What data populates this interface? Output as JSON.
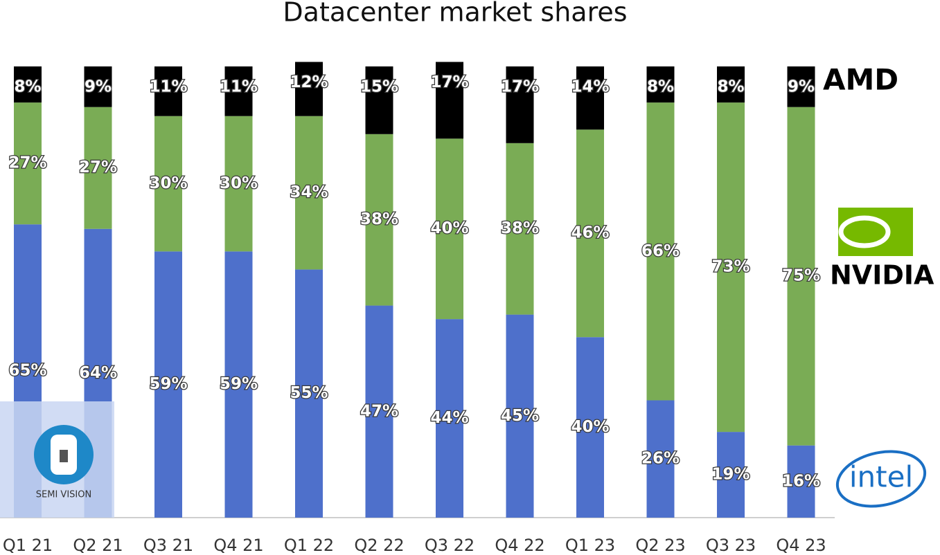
{
  "chart_data": {
    "type": "stacked-bar",
    "title": "Datacenter market shares",
    "watermark": "SEMI VISION",
    "categories": [
      "Q1 21",
      "Q2 21",
      "Q3 21",
      "Q4 21",
      "Q1 22",
      "Q2 22",
      "Q3 22",
      "Q4 22",
      "Q1 23",
      "Q2 23",
      "Q3 23",
      "Q4 23"
    ],
    "ylim": [
      0,
      100
    ],
    "series": [
      {
        "name": "intel",
        "color": "#4e70cb",
        "values": [
          65,
          64,
          59,
          59,
          55,
          47,
          44,
          45,
          40,
          26,
          19,
          16
        ],
        "value_labels": [
          "65%",
          "64%",
          "59%",
          "59%",
          "55%",
          "47%",
          "44%",
          "45%",
          "40%",
          "26%",
          "19%",
          "16%"
        ]
      },
      {
        "name": "NVIDIA",
        "color": "#7aac55",
        "values": [
          27,
          27,
          30,
          30,
          34,
          38,
          40,
          38,
          46,
          66,
          73,
          75
        ],
        "value_labels": [
          "27%",
          "27%",
          "30%",
          "30%",
          "34%",
          "38%",
          "40%",
          "38%",
          "46%",
          "66%",
          "73%",
          "75%"
        ]
      },
      {
        "name": "AMD",
        "color": "#000000",
        "values": [
          8,
          9,
          11,
          11,
          12,
          15,
          17,
          17,
          14,
          8,
          8,
          9
        ],
        "value_labels": [
          "8%",
          "9%",
          "11%",
          "11%",
          "12%",
          "15%",
          "17%",
          "17%",
          "14%",
          "8%",
          "8%",
          "9%"
        ]
      }
    ]
  }
}
